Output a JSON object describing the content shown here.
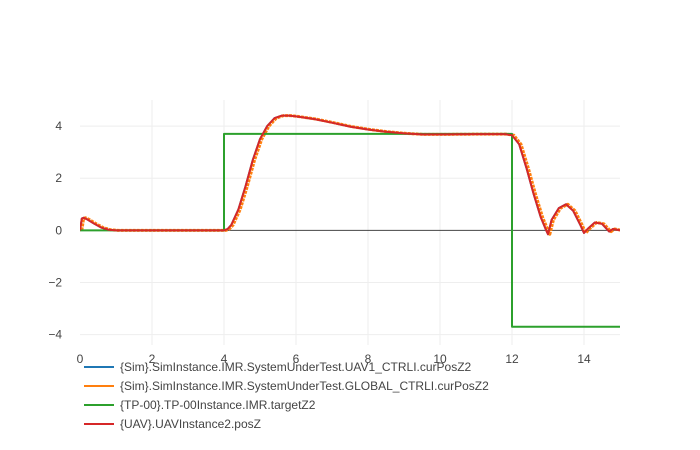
{
  "chart_data": {
    "type": "line",
    "title": "",
    "xlabel": "",
    "ylabel": "",
    "xlim": [
      0,
      15
    ],
    "ylim": [
      -4.4,
      5
    ],
    "x_ticks": [
      "0",
      "2",
      "4",
      "6",
      "8",
      "10",
      "12",
      "14"
    ],
    "y_ticks": [
      "−4",
      "−2",
      "0",
      "2",
      "4"
    ],
    "y_tick_values": [
      -4,
      -2,
      0,
      2,
      4
    ],
    "x_tick_values": [
      0,
      2,
      4,
      6,
      8,
      10,
      12,
      14
    ],
    "grid": true,
    "legend_position": "bottom-left",
    "series": [
      {
        "name": "{Sim}.SimInstance.IMR.SystemUnderTest.UAV1_CTRLI.curPosZ2",
        "color": "#1f77b4",
        "x": [
          0,
          0.05,
          0.1,
          0.2,
          0.4,
          0.6,
          0.8,
          1.0,
          2.0,
          3.0,
          4.0,
          4.1,
          4.2,
          4.4,
          4.6,
          4.8,
          5.0,
          5.2,
          5.4,
          5.6,
          5.8,
          6.0,
          6.5,
          7.0,
          7.5,
          8.0,
          8.5,
          9.0,
          9.5,
          10.0,
          11.0,
          11.8,
          12.0,
          12.2,
          12.4,
          12.6,
          12.8,
          12.95,
          13.0,
          13.1,
          13.3,
          13.5,
          13.7,
          13.9,
          14.0,
          14.1,
          14.3,
          14.5,
          14.6,
          14.7,
          14.8,
          15.0
        ],
        "y": [
          0,
          0.45,
          0.48,
          0.42,
          0.25,
          0.1,
          0.02,
          0,
          0,
          0,
          0,
          0.05,
          0.2,
          0.8,
          1.7,
          2.7,
          3.5,
          4.0,
          4.3,
          4.4,
          4.4,
          4.37,
          4.27,
          4.13,
          3.98,
          3.87,
          3.78,
          3.72,
          3.68,
          3.68,
          3.69,
          3.69,
          3.65,
          3.3,
          2.4,
          1.4,
          0.5,
          0.0,
          -0.15,
          0.4,
          0.85,
          1.0,
          0.75,
          0.2,
          -0.1,
          0.05,
          0.3,
          0.25,
          0.1,
          -0.05,
          0.05,
          0.0
        ]
      },
      {
        "name": "{Sim}.SimInstance.IMR.SystemUnderTest.GLOBAL_CTRLI.curPosZ2",
        "color": "#ff7f0e",
        "x": [
          0,
          0.05,
          0.1,
          0.2,
          0.4,
          0.6,
          0.8,
          1.0,
          2.0,
          3.0,
          4.0,
          4.1,
          4.2,
          4.4,
          4.6,
          4.8,
          5.0,
          5.2,
          5.4,
          5.6,
          5.8,
          6.0,
          6.5,
          7.0,
          7.5,
          8.0,
          8.5,
          9.0,
          9.5,
          10.0,
          11.0,
          11.8,
          12.0,
          12.2,
          12.4,
          12.6,
          12.8,
          12.95,
          13.0,
          13.1,
          13.3,
          13.5,
          13.7,
          13.9,
          14.0,
          14.1,
          14.3,
          14.5,
          14.6,
          14.7,
          14.8,
          15.0
        ],
        "y": [
          0,
          0.45,
          0.48,
          0.42,
          0.25,
          0.1,
          0.02,
          0,
          0,
          0,
          0,
          0.05,
          0.2,
          0.8,
          1.7,
          2.7,
          3.5,
          4.0,
          4.3,
          4.4,
          4.4,
          4.37,
          4.27,
          4.13,
          3.98,
          3.87,
          3.78,
          3.72,
          3.68,
          3.68,
          3.69,
          3.69,
          3.65,
          3.3,
          2.4,
          1.4,
          0.5,
          0.0,
          -0.15,
          0.4,
          0.85,
          1.0,
          0.75,
          0.2,
          -0.1,
          0.05,
          0.3,
          0.25,
          0.1,
          -0.05,
          0.05,
          0.0
        ]
      },
      {
        "name": "{TP-00}.TP-00Instance.IMR.targetZ2",
        "color": "#2ca02c",
        "x": [
          0,
          4,
          4,
          12,
          12,
          15
        ],
        "y": [
          0,
          0,
          3.7,
          3.7,
          -3.7,
          -3.7
        ]
      },
      {
        "name": "{UAV}.UAVInstance2.posZ",
        "color": "#d62728",
        "x": [
          0,
          0.05,
          0.1,
          0.2,
          0.4,
          0.6,
          0.8,
          1.0,
          2.0,
          3.0,
          4.0,
          4.1,
          4.2,
          4.4,
          4.6,
          4.8,
          5.0,
          5.2,
          5.4,
          5.6,
          5.8,
          6.0,
          6.5,
          7.0,
          7.5,
          8.0,
          8.5,
          9.0,
          9.5,
          10.0,
          11.0,
          11.8,
          12.0,
          12.2,
          12.4,
          12.6,
          12.8,
          12.95,
          13.0,
          13.1,
          13.3,
          13.5,
          13.7,
          13.9,
          14.0,
          14.1,
          14.3,
          14.5,
          14.6,
          14.7,
          14.8,
          15.0
        ],
        "y": [
          0,
          0.45,
          0.48,
          0.42,
          0.25,
          0.1,
          0.02,
          0,
          0,
          0,
          0,
          0.05,
          0.2,
          0.8,
          1.7,
          2.7,
          3.5,
          4.0,
          4.3,
          4.4,
          4.4,
          4.37,
          4.27,
          4.13,
          3.98,
          3.87,
          3.78,
          3.72,
          3.68,
          3.68,
          3.69,
          3.69,
          3.65,
          3.3,
          2.4,
          1.4,
          0.5,
          0.0,
          -0.15,
          0.4,
          0.85,
          1.0,
          0.75,
          0.2,
          -0.1,
          0.05,
          0.3,
          0.25,
          0.1,
          -0.05,
          0.05,
          0.0
        ]
      }
    ]
  }
}
